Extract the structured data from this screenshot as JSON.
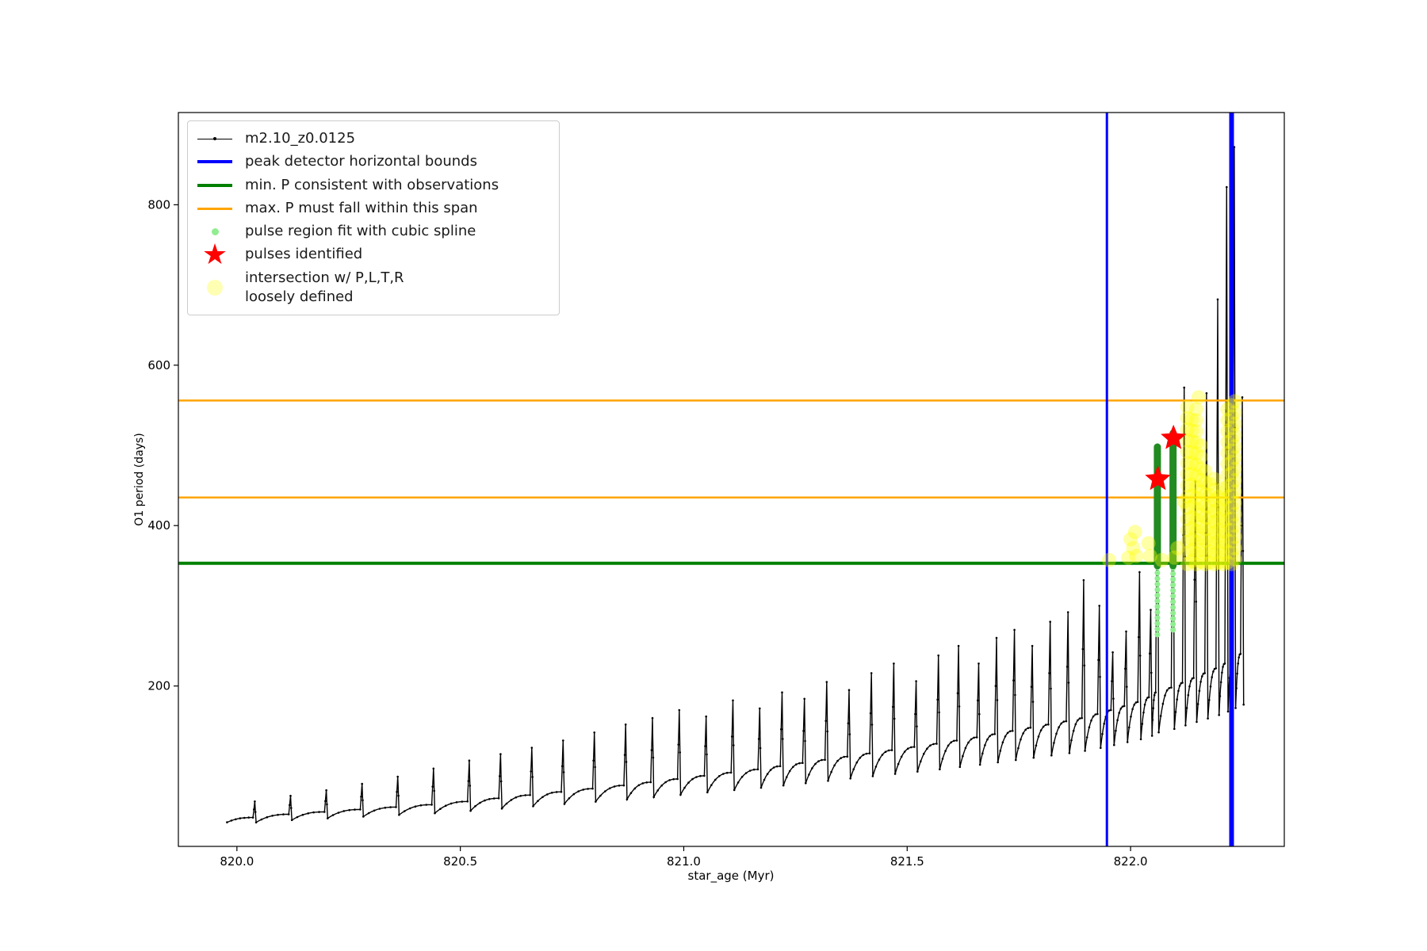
{
  "figure": {
    "background": "#ffffff"
  },
  "chart_data": {
    "type": "line",
    "title": "",
    "xlabel": "star_age (Myr)",
    "ylabel": "O1 period (days)",
    "xlim": [
      819.869,
      822.344
    ],
    "ylim": [
      0,
      915
    ],
    "xticks": [
      820.0,
      820.5,
      821.0,
      821.5,
      822.0
    ],
    "xtick_labels": [
      "820.0",
      "820.5",
      "821.0",
      "821.5",
      "822.0"
    ],
    "yticks": [
      200,
      400,
      600,
      800
    ],
    "ytick_labels": [
      "200",
      "400",
      "600",
      "800"
    ],
    "grid": false,
    "legend_position": "upper-left",
    "legend": [
      {
        "label": "m2.10_z0.0125",
        "symbol": "line-marker",
        "color": "#000000",
        "lw": 1.5,
        "icon": "series-line-icon"
      },
      {
        "label": "peak detector horizontal bounds",
        "symbol": "line",
        "color": "#0000ff",
        "lw": 4,
        "icon": "blue-line-icon"
      },
      {
        "label": "min. P consistent with observations",
        "symbol": "line",
        "color": "#008000",
        "lw": 4,
        "icon": "green-line-icon"
      },
      {
        "label": "max. P must fall within this span",
        "symbol": "line",
        "color": "#ffa500",
        "lw": 3,
        "icon": "orange-line-icon"
      },
      {
        "label": "pulse region fit with cubic spline",
        "symbol": "dot",
        "color": "#90ee90",
        "size": 9,
        "icon": "green-dot-icon"
      },
      {
        "label": "pulses identified",
        "symbol": "star",
        "color": "#ff0000",
        "size": 36,
        "icon": "red-star-icon"
      },
      {
        "label": "intersection w/ P,L,T,R\nloosely defined",
        "symbol": "dot",
        "color": "#ffffb3",
        "size": 20,
        "icon": "yellow-dot-icon"
      }
    ],
    "series": {
      "name": "m2.10_z0.0125",
      "color": "#000000",
      "start": [
        819.978,
        30
      ],
      "pulses": [
        [
          820.04,
          36,
          56
        ],
        [
          820.12,
          40,
          63
        ],
        [
          820.2,
          43,
          70
        ],
        [
          820.28,
          46,
          78
        ],
        [
          820.36,
          49,
          87
        ],
        [
          820.44,
          52,
          97
        ],
        [
          820.52,
          56,
          107
        ],
        [
          820.59,
          60,
          115
        ],
        [
          820.66,
          64,
          123
        ],
        [
          820.73,
          68,
          132
        ],
        [
          820.8,
          72,
          142
        ],
        [
          820.87,
          76,
          152
        ],
        [
          820.93,
          80,
          160
        ],
        [
          820.99,
          84,
          170
        ],
        [
          821.05,
          88,
          162
        ],
        [
          821.11,
          92,
          182
        ],
        [
          821.17,
          96,
          172
        ],
        [
          821.22,
          100,
          192
        ],
        [
          821.27,
          104,
          184
        ],
        [
          821.32,
          108,
          205
        ],
        [
          821.37,
          112,
          195
        ],
        [
          821.42,
          116,
          216
        ],
        [
          821.47,
          120,
          228
        ],
        [
          821.52,
          124,
          206
        ],
        [
          821.57,
          128,
          238
        ],
        [
          821.615,
          132,
          250
        ],
        [
          821.66,
          136,
          228
        ],
        [
          821.7,
          140,
          260
        ],
        [
          821.74,
          144,
          270
        ],
        [
          821.78,
          148,
          250
        ],
        [
          821.82,
          152,
          280
        ],
        [
          821.86,
          156,
          292
        ],
        [
          821.895,
          160,
          332
        ],
        [
          821.93,
          165,
          300
        ],
        [
          821.96,
          170,
          242
        ],
        [
          821.99,
          175,
          268
        ],
        [
          822.02,
          180,
          342
        ],
        [
          822.045,
          186,
          295
        ],
        [
          822.06,
          192,
          462
        ],
        [
          822.095,
          198,
          516
        ],
        [
          822.12,
          204,
          572
        ],
        [
          822.145,
          210,
          455
        ],
        [
          822.17,
          216,
          565
        ],
        [
          822.195,
          222,
          682
        ],
        [
          822.215,
          228,
          822
        ],
        [
          822.232,
          234,
          872
        ],
        [
          822.25,
          240,
          560
        ]
      ]
    },
    "peak_detector_bounds": {
      "color": "#0000ff",
      "x": [
        821.947,
        822.226
      ],
      "widths": [
        3,
        6
      ]
    },
    "min_P_line": {
      "color": "#008000",
      "y": 353,
      "width": 4
    },
    "max_P_span": {
      "color": "#ffa500",
      "y": [
        556,
        435
      ],
      "width": 2.5
    },
    "spline_fit": {
      "color": "#90ee90",
      "columns": [
        [
          822.06,
          264,
          348
        ],
        [
          822.095,
          270,
          348
        ]
      ]
    },
    "pulse_columns": {
      "color": "#228b22",
      "columns": [
        [
          822.06,
          350,
          498
        ],
        [
          822.095,
          350,
          515
        ]
      ]
    },
    "pulses_identified": {
      "color": "#ff0000",
      "points": [
        [
          822.061,
          458
        ],
        [
          822.096,
          509
        ]
      ]
    },
    "intersection_markers": {
      "color": "#ffff00",
      "opacity": 0.35,
      "radius": 9,
      "columns": [
        [
          822.127,
          352,
          548
        ],
        [
          822.137,
          356,
          532
        ],
        [
          822.147,
          352,
          545
        ],
        [
          822.157,
          355,
          500
        ],
        [
          822.167,
          352,
          468
        ],
        [
          822.177,
          354,
          452
        ],
        [
          822.187,
          352,
          458
        ],
        [
          822.197,
          354,
          436
        ],
        [
          822.207,
          352,
          446
        ],
        [
          822.217,
          354,
          545
        ],
        [
          822.226,
          352,
          550
        ],
        [
          822.233,
          358,
          555
        ]
      ],
      "points": [
        [
          821.952,
          357
        ],
        [
          821.995,
          360
        ],
        [
          822.0,
          383
        ],
        [
          822.006,
          372
        ],
        [
          822.01,
          392
        ],
        [
          822.013,
          362
        ],
        [
          822.04,
          378
        ],
        [
          822.044,
          362
        ],
        [
          822.07,
          357
        ],
        [
          822.098,
          360
        ],
        [
          822.105,
          372
        ],
        [
          822.12,
          430
        ],
        [
          822.152,
          560
        ]
      ]
    }
  }
}
